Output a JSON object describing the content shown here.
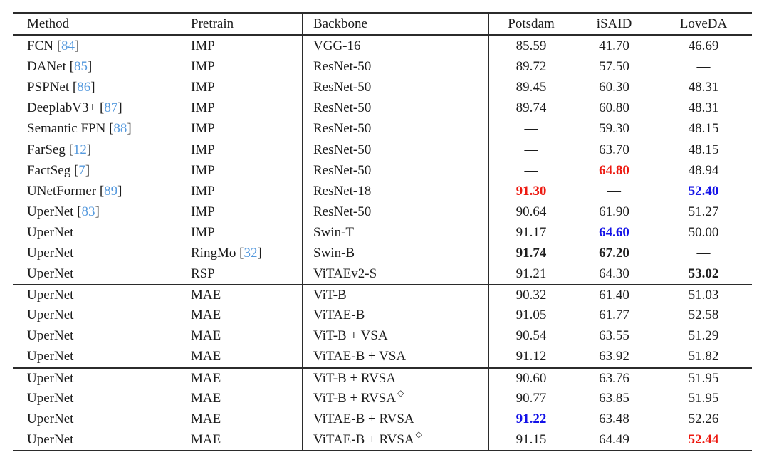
{
  "colors": {
    "citation_blue": "#569ade",
    "best_red": "#ed1a11",
    "second_blue": "#1312e8",
    "text": "#1c1c1c",
    "rule": "#2b2b2b"
  },
  "table": {
    "columns": [
      "Method",
      "Pretrain",
      "Backbone",
      "Potsdam",
      "iSAID",
      "LoveDA"
    ],
    "dash": "—",
    "diamond": "◇",
    "rows": [
      {
        "method": "FCN",
        "cite": "84",
        "pretrain": "IMP",
        "backbone": "VGG-16",
        "potsdam": {
          "v": "85.59",
          "s": ""
        },
        "isaid": {
          "v": "41.70",
          "s": ""
        },
        "loveda": {
          "v": "46.69",
          "s": ""
        }
      },
      {
        "method": "DANet",
        "cite": "85",
        "pretrain": "IMP",
        "backbone": "ResNet-50",
        "potsdam": {
          "v": "89.72",
          "s": ""
        },
        "isaid": {
          "v": "57.50",
          "s": ""
        },
        "loveda": {
          "v": "—",
          "s": ""
        }
      },
      {
        "method": "PSPNet",
        "cite": "86",
        "pretrain": "IMP",
        "backbone": "ResNet-50",
        "potsdam": {
          "v": "89.45",
          "s": ""
        },
        "isaid": {
          "v": "60.30",
          "s": ""
        },
        "loveda": {
          "v": "48.31",
          "s": ""
        }
      },
      {
        "method": "DeeplabV3+",
        "cite": "87",
        "pretrain": "IMP",
        "backbone": "ResNet-50",
        "potsdam": {
          "v": "89.74",
          "s": ""
        },
        "isaid": {
          "v": "60.80",
          "s": ""
        },
        "loveda": {
          "v": "48.31",
          "s": ""
        }
      },
      {
        "method": "Semantic FPN",
        "cite": "88",
        "pretrain": "IMP",
        "backbone": "ResNet-50",
        "potsdam": {
          "v": "—",
          "s": ""
        },
        "isaid": {
          "v": "59.30",
          "s": ""
        },
        "loveda": {
          "v": "48.15",
          "s": ""
        }
      },
      {
        "method": "FarSeg",
        "cite": "12",
        "pretrain": "IMP",
        "backbone": "ResNet-50",
        "potsdam": {
          "v": "—",
          "s": ""
        },
        "isaid": {
          "v": "63.70",
          "s": ""
        },
        "loveda": {
          "v": "48.15",
          "s": ""
        }
      },
      {
        "method": "FactSeg",
        "cite": "7",
        "pretrain": "IMP",
        "backbone": "ResNet-50",
        "potsdam": {
          "v": "—",
          "s": ""
        },
        "isaid": {
          "v": "64.80",
          "s": "r"
        },
        "loveda": {
          "v": "48.94",
          "s": ""
        }
      },
      {
        "method": "UNetFormer",
        "cite": "89",
        "pretrain": "IMP",
        "backbone": "ResNet-18",
        "potsdam": {
          "v": "91.30",
          "s": "r"
        },
        "isaid": {
          "v": "—",
          "s": ""
        },
        "loveda": {
          "v": "52.40",
          "s": "bl"
        }
      },
      {
        "method": "UperNet",
        "cite": "83",
        "pretrain": "IMP",
        "backbone": "ResNet-50",
        "potsdam": {
          "v": "90.64",
          "s": ""
        },
        "isaid": {
          "v": "61.90",
          "s": ""
        },
        "loveda": {
          "v": "51.27",
          "s": ""
        }
      },
      {
        "method": "UperNet",
        "pretrain": "IMP",
        "backbone": "Swin-T",
        "potsdam": {
          "v": "91.17",
          "s": ""
        },
        "isaid": {
          "v": "64.60",
          "s": "bl"
        },
        "loveda": {
          "v": "50.00",
          "s": ""
        }
      },
      {
        "method": "UperNet",
        "pretrain": "RingMo",
        "pre_cite": "32",
        "backbone": "Swin-B",
        "potsdam": {
          "v": "91.74",
          "s": "b"
        },
        "isaid": {
          "v": "67.20",
          "s": "b"
        },
        "loveda": {
          "v": "—",
          "s": ""
        }
      },
      {
        "method": "UperNet",
        "pretrain": "RSP",
        "backbone": "ViTAEv2-S",
        "potsdam": {
          "v": "91.21",
          "s": ""
        },
        "isaid": {
          "v": "64.30",
          "s": ""
        },
        "loveda": {
          "v": "53.02",
          "s": "b"
        }
      },
      {
        "method": "UperNet",
        "pretrain": "MAE",
        "backbone": "ViT-B",
        "rule": true,
        "potsdam": {
          "v": "90.32",
          "s": ""
        },
        "isaid": {
          "v": "61.40",
          "s": ""
        },
        "loveda": {
          "v": "51.03",
          "s": ""
        }
      },
      {
        "method": "UperNet",
        "pretrain": "MAE",
        "backbone": "ViTAE-B",
        "potsdam": {
          "v": "91.05",
          "s": ""
        },
        "isaid": {
          "v": "61.77",
          "s": ""
        },
        "loveda": {
          "v": "52.58",
          "s": ""
        }
      },
      {
        "method": "UperNet",
        "pretrain": "MAE",
        "backbone": "ViT-B + VSA",
        "potsdam": {
          "v": "90.54",
          "s": ""
        },
        "isaid": {
          "v": "63.55",
          "s": ""
        },
        "loveda": {
          "v": "51.29",
          "s": ""
        }
      },
      {
        "method": "UperNet",
        "pretrain": "MAE",
        "backbone": "ViTAE-B + VSA",
        "potsdam": {
          "v": "91.12",
          "s": ""
        },
        "isaid": {
          "v": "63.92",
          "s": ""
        },
        "loveda": {
          "v": "51.82",
          "s": ""
        }
      },
      {
        "method": "UperNet",
        "pretrain": "MAE",
        "backbone": "ViT-B + RVSA",
        "rule": true,
        "potsdam": {
          "v": "90.60",
          "s": ""
        },
        "isaid": {
          "v": "63.76",
          "s": ""
        },
        "loveda": {
          "v": "51.95",
          "s": ""
        }
      },
      {
        "method": "UperNet",
        "pretrain": "MAE",
        "backbone": "ViT-B + RVSA",
        "sup": true,
        "potsdam": {
          "v": "90.77",
          "s": ""
        },
        "isaid": {
          "v": "63.85",
          "s": ""
        },
        "loveda": {
          "v": "51.95",
          "s": ""
        }
      },
      {
        "method": "UperNet",
        "pretrain": "MAE",
        "backbone": "ViTAE-B + RVSA",
        "potsdam": {
          "v": "91.22",
          "s": "bl"
        },
        "isaid": {
          "v": "63.48",
          "s": ""
        },
        "loveda": {
          "v": "52.26",
          "s": ""
        }
      },
      {
        "method": "UperNet",
        "pretrain": "MAE",
        "backbone": "ViTAE-B + RVSA",
        "sup": true,
        "potsdam": {
          "v": "91.15",
          "s": ""
        },
        "isaid": {
          "v": "64.49",
          "s": ""
        },
        "loveda": {
          "v": "52.44",
          "s": "r"
        }
      }
    ]
  }
}
